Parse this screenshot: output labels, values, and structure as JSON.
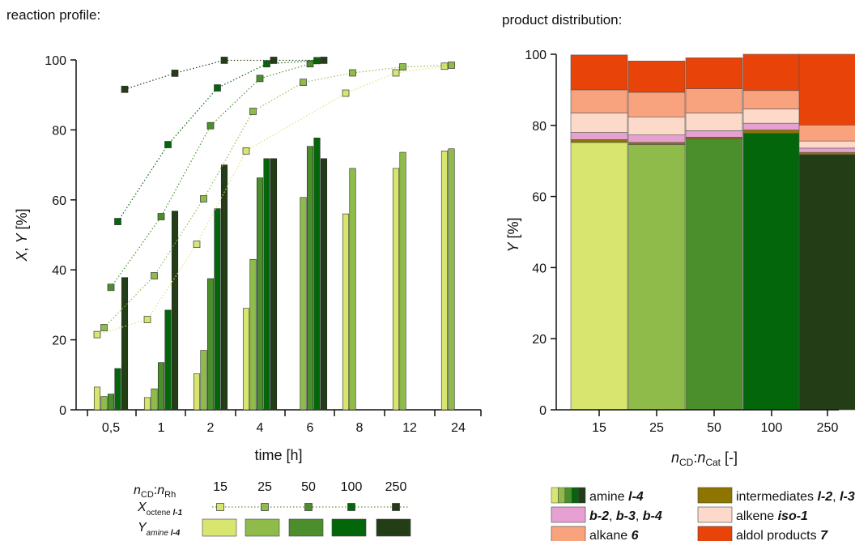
{
  "chart_data": [
    {
      "type": "bar",
      "title": "reaction profile:",
      "xlabel": "time [h]",
      "ylabel_parts": [
        "X",
        ", ",
        "Y",
        " [%]"
      ],
      "ylim": [
        0,
        100
      ],
      "yticks": [
        0,
        20,
        40,
        60,
        80,
        100
      ],
      "categories": [
        "0,5",
        "1",
        "2",
        "4",
        "6",
        "8",
        "12",
        "24"
      ],
      "series": [
        {
          "name": "15",
          "Y": [
            6.5,
            3.5,
            10.3,
            29.0,
            null,
            56.0,
            69.0,
            74.0
          ],
          "X": [
            21.5,
            25.8,
            47.3,
            74.0,
            null,
            90.5,
            96.3,
            98.2
          ]
        },
        {
          "name": "25",
          "Y": [
            3.8,
            6.0,
            17.0,
            43.0,
            60.7,
            69.0,
            73.6,
            74.6
          ],
          "X": [
            23.5,
            38.3,
            60.3,
            85.3,
            93.6,
            96.3,
            98.0,
            98.5
          ]
        },
        {
          "name": "50",
          "Y": [
            4.5,
            13.5,
            37.5,
            66.3,
            75.3,
            null,
            null,
            null
          ],
          "X": [
            35.0,
            55.2,
            81.2,
            94.7,
            98.9,
            null,
            null,
            null
          ]
        },
        {
          "name": "100",
          "Y": [
            11.8,
            28.5,
            57.5,
            71.8,
            77.7,
            null,
            null,
            null
          ],
          "X": [
            53.8,
            75.8,
            92.0,
            98.9,
            99.8,
            null,
            null,
            null
          ]
        },
        {
          "name": "250",
          "Y": [
            37.8,
            56.8,
            70.0,
            71.8,
            71.8,
            null,
            null,
            null
          ],
          "X": [
            91.6,
            96.2,
            99.9,
            99.9,
            99.9,
            null,
            null,
            null
          ]
        }
      ],
      "colors": [
        "#d8e56e",
        "#8fbb4a",
        "#4b8f2c",
        "#04660b",
        "#233d16"
      ],
      "legend": {
        "header_prefix": "n",
        "header_sub1": "CD",
        "header_mid": ":n",
        "header_sub2": "Rh",
        "ratios": [
          "15",
          "25",
          "50",
          "100",
          "250"
        ],
        "x_row": {
          "main": "X",
          "sub_plain": "octene ",
          "sub_bold": "l-1"
        },
        "y_row": {
          "main": "Y",
          "sub_plain": "amine ",
          "sub_bold": "l-4"
        }
      }
    },
    {
      "type": "bar",
      "stacked": true,
      "title": "product distribution:",
      "xlabel_parts": [
        "n",
        "CD",
        ":n",
        "Cat",
        " [-]"
      ],
      "ylabel_parts": [
        "Y",
        " [%]"
      ],
      "ylim": [
        0,
        100
      ],
      "yticks": [
        0,
        20,
        40,
        60,
        80,
        100
      ],
      "categories": [
        "15",
        "25",
        "50",
        "100",
        "250"
      ],
      "amine_colors": [
        "#d8e56e",
        "#8fbb4a",
        "#4b8f2c",
        "#04660b",
        "#233d16"
      ],
      "series": [
        {
          "key": "amine",
          "values": [
            75.2,
            74.6,
            76.2,
            77.8,
            71.8
          ]
        },
        {
          "key": "intermediates",
          "values": [
            0.8,
            0.6,
            0.5,
            0.9,
            0.6
          ]
        },
        {
          "key": "branched",
          "values": [
            2.0,
            2.1,
            1.8,
            1.9,
            1.2
          ]
        },
        {
          "key": "alkene",
          "values": [
            5.5,
            5.1,
            5.0,
            4.0,
            2.0
          ]
        },
        {
          "key": "alkane",
          "values": [
            6.5,
            6.9,
            6.8,
            5.2,
            4.5
          ]
        },
        {
          "key": "aldol",
          "values": [
            9.8,
            8.8,
            8.7,
            10.2,
            19.9
          ]
        }
      ],
      "legend": [
        {
          "key": "amine",
          "color": "gradient",
          "parts": [
            {
              "t": "amine ",
              "s": "n"
            },
            {
              "t": "l-4",
              "s": "bi"
            }
          ]
        },
        {
          "key": "intermediates",
          "color": "#8d7500",
          "parts": [
            {
              "t": "intermediates ",
              "s": "n"
            },
            {
              "t": "l-2",
              "s": "bi"
            },
            {
              "t": ", ",
              "s": "n"
            },
            {
              "t": "l-3",
              "s": "bi"
            }
          ]
        },
        {
          "key": "branched",
          "color": "#e7a0d2",
          "parts": [
            {
              "t": "b-2",
              "s": "bi"
            },
            {
              "t": ", ",
              "s": "n"
            },
            {
              "t": "b-3",
              "s": "bi"
            },
            {
              "t": ", ",
              "s": "n"
            },
            {
              "t": "b-4",
              "s": "bi"
            }
          ]
        },
        {
          "key": "alkene",
          "color": "#fcd9c8",
          "parts": [
            {
              "t": "alkene ",
              "s": "n"
            },
            {
              "t": "iso-1",
              "s": "bi"
            }
          ]
        },
        {
          "key": "alkane",
          "color": "#f9a27e",
          "parts": [
            {
              "t": "alkane ",
              "s": "n"
            },
            {
              "t": "6",
              "s": "bi"
            }
          ]
        },
        {
          "key": "aldol",
          "color": "#e84308",
          "parts": [
            {
              "t": "aldol products ",
              "s": "n"
            },
            {
              "t": "7",
              "s": "bi"
            }
          ]
        }
      ]
    }
  ]
}
